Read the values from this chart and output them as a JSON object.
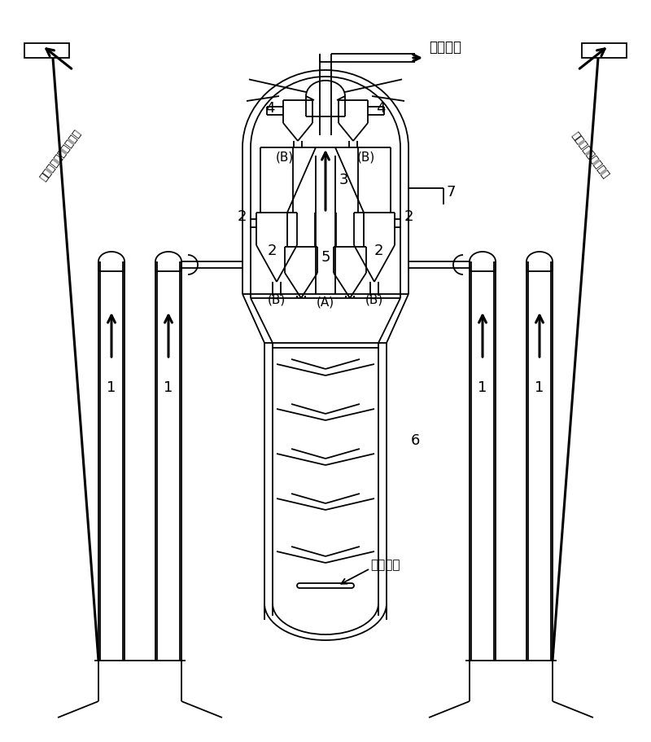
{
  "bg_color": "#ffffff",
  "lc": "#000000",
  "lw": 1.3,
  "lw2": 2.2,
  "labels": {
    "1": "1",
    "2": "2",
    "3": "3",
    "4": "4",
    "5": "5",
    "6": "6",
    "7": "7",
    "A": "(A)",
    "B": "(B)"
  },
  "text_top": "反应油气",
  "text_steam": "汽提蒂汽",
  "text_left": "半再生化剤自再生器来",
  "text_right": "再生化剤自再生器来",
  "figsize": [
    8.0,
    9.11
  ],
  "dpi": 100
}
